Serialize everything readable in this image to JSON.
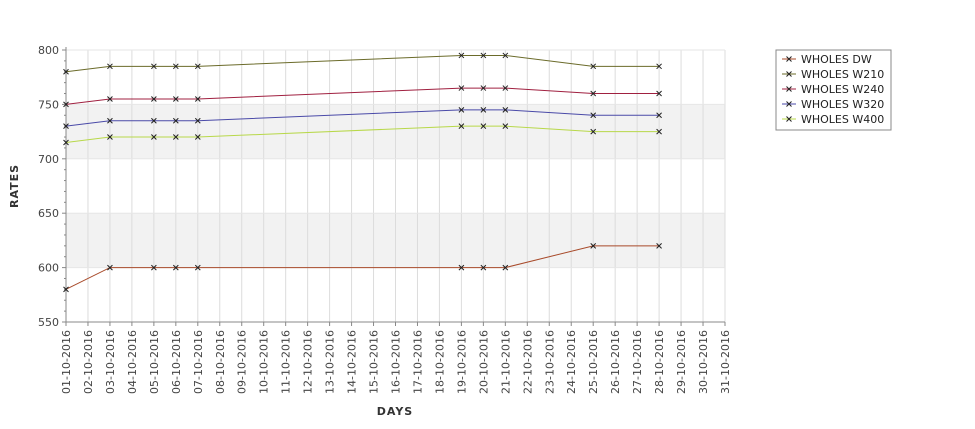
{
  "chart_data": {
    "type": "line",
    "xlabel": "DAYS",
    "ylabel": "RATES",
    "ylim": [
      550,
      800
    ],
    "yticks": [
      550,
      600,
      650,
      700,
      750,
      800
    ],
    "x_categories": [
      "01-10-2016",
      "02-10-2016",
      "03-10-2016",
      "04-10-2016",
      "05-10-2016",
      "06-10-2016",
      "07-10-2016",
      "08-10-2016",
      "09-10-2016",
      "10-10-2016",
      "11-10-2016",
      "12-10-2016",
      "13-10-2016",
      "14-10-2016",
      "15-10-2016",
      "16-10-2016",
      "17-10-2016",
      "18-10-2016",
      "19-10-2016",
      "20-10-2016",
      "21-10-2016",
      "22-10-2016",
      "23-10-2016",
      "24-10-2016",
      "25-10-2016",
      "26-10-2016",
      "27-10-2016",
      "28-10-2016",
      "29-10-2016",
      "30-10-2016",
      "31-10-2016"
    ],
    "legend_position": "top-right",
    "grid": "alternating horizontal bands",
    "series": [
      {
        "name": "WHOLES DW",
        "color": "#a84a2a",
        "points": [
          [
            "01-10-2016",
            580
          ],
          [
            "03-10-2016",
            600
          ],
          [
            "05-10-2016",
            600
          ],
          [
            "06-10-2016",
            600
          ],
          [
            "07-10-2016",
            600
          ],
          [
            "19-10-2016",
            600
          ],
          [
            "20-10-2016",
            600
          ],
          [
            "21-10-2016",
            600
          ],
          [
            "25-10-2016",
            620
          ],
          [
            "28-10-2016",
            620
          ]
        ]
      },
      {
        "name": "WHOLES W210",
        "color": "#6b6b2a",
        "points": [
          [
            "01-10-2016",
            780
          ],
          [
            "03-10-2016",
            785
          ],
          [
            "05-10-2016",
            785
          ],
          [
            "06-10-2016",
            785
          ],
          [
            "07-10-2016",
            785
          ],
          [
            "19-10-2016",
            795
          ],
          [
            "20-10-2016",
            795
          ],
          [
            "21-10-2016",
            795
          ],
          [
            "25-10-2016",
            785
          ],
          [
            "28-10-2016",
            785
          ]
        ]
      },
      {
        "name": "WHOLES W240",
        "color": "#a02040",
        "points": [
          [
            "01-10-2016",
            750
          ],
          [
            "03-10-2016",
            755
          ],
          [
            "05-10-2016",
            755
          ],
          [
            "06-10-2016",
            755
          ],
          [
            "07-10-2016",
            755
          ],
          [
            "19-10-2016",
            765
          ],
          [
            "20-10-2016",
            765
          ],
          [
            "21-10-2016",
            765
          ],
          [
            "25-10-2016",
            760
          ],
          [
            "28-10-2016",
            760
          ]
        ]
      },
      {
        "name": "WHOLES W320",
        "color": "#4a4aa8",
        "points": [
          [
            "01-10-2016",
            730
          ],
          [
            "03-10-2016",
            735
          ],
          [
            "05-10-2016",
            735
          ],
          [
            "06-10-2016",
            735
          ],
          [
            "07-10-2016",
            735
          ],
          [
            "19-10-2016",
            745
          ],
          [
            "20-10-2016",
            745
          ],
          [
            "21-10-2016",
            745
          ],
          [
            "25-10-2016",
            740
          ],
          [
            "28-10-2016",
            740
          ]
        ]
      },
      {
        "name": "WHOLES W400",
        "color": "#b8d84a",
        "points": [
          [
            "01-10-2016",
            715
          ],
          [
            "03-10-2016",
            720
          ],
          [
            "05-10-2016",
            720
          ],
          [
            "06-10-2016",
            720
          ],
          [
            "07-10-2016",
            720
          ],
          [
            "19-10-2016",
            730
          ],
          [
            "20-10-2016",
            730
          ],
          [
            "21-10-2016",
            730
          ],
          [
            "25-10-2016",
            725
          ],
          [
            "28-10-2016",
            725
          ]
        ]
      }
    ]
  }
}
